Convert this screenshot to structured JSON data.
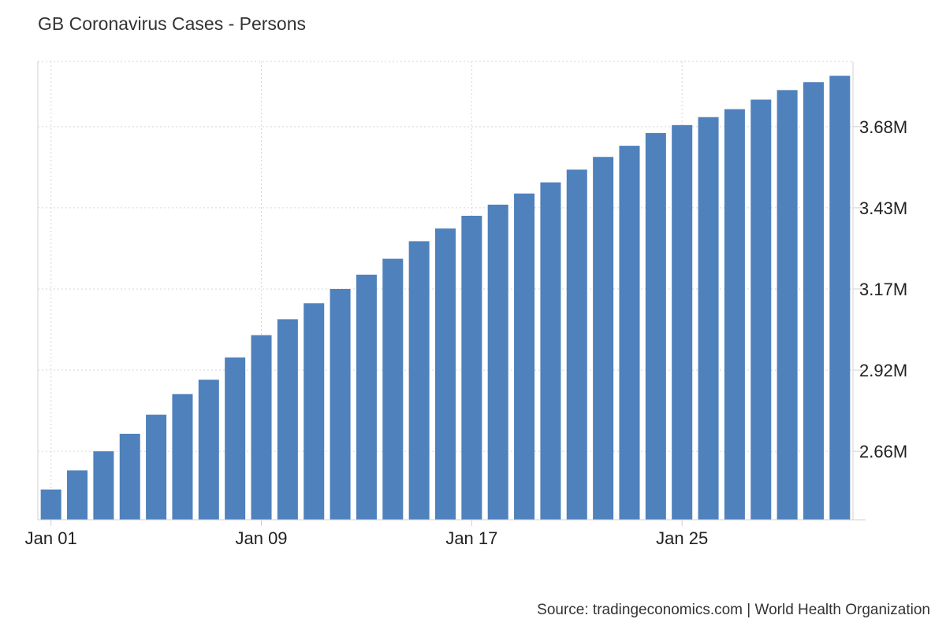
{
  "title": "GB Coronavirus Cases - Persons",
  "source": "Source: tradingeconomics.com | World Health Organization",
  "colors": {
    "bar": "#4f81bd",
    "grid": "#d6d6d6",
    "text": "#222222"
  },
  "chart_data": {
    "type": "bar",
    "title": "GB Coronavirus Cases - Persons",
    "xlabel": "",
    "ylabel": "",
    "categories": [
      "Jan 01",
      "Jan 02",
      "Jan 03",
      "Jan 04",
      "Jan 05",
      "Jan 06",
      "Jan 07",
      "Jan 08",
      "Jan 09",
      "Jan 10",
      "Jan 11",
      "Jan 12",
      "Jan 13",
      "Jan 14",
      "Jan 15",
      "Jan 16",
      "Jan 17",
      "Jan 18",
      "Jan 19",
      "Jan 20",
      "Jan 21",
      "Jan 22",
      "Jan 23",
      "Jan 24",
      "Jan 25",
      "Jan 26",
      "Jan 27",
      "Jan 28",
      "Jan 29",
      "Jan 30",
      "Jan 31"
    ],
    "values": [
      2540000,
      2600000,
      2660000,
      2715000,
      2775000,
      2840000,
      2885000,
      2955000,
      3025000,
      3075000,
      3125000,
      3170000,
      3215000,
      3265000,
      3320000,
      3360000,
      3400000,
      3435000,
      3470000,
      3505000,
      3545000,
      3585000,
      3620000,
      3660000,
      3685000,
      3710000,
      3735000,
      3765000,
      3795000,
      3820000,
      3840000
    ],
    "x_tick_labels": [
      "Jan 01",
      "Jan 09",
      "Jan 17",
      "Jan 25"
    ],
    "y_tick_labels": [
      "2.66M",
      "2.92M",
      "3.17M",
      "3.43M",
      "3.68M"
    ],
    "y_tick_values": [
      2660000,
      2915000,
      3170000,
      3425000,
      3680000
    ],
    "ylim": [
      2445000,
      3885000
    ],
    "grid": true,
    "y_axis_side": "right",
    "legend": "none"
  }
}
